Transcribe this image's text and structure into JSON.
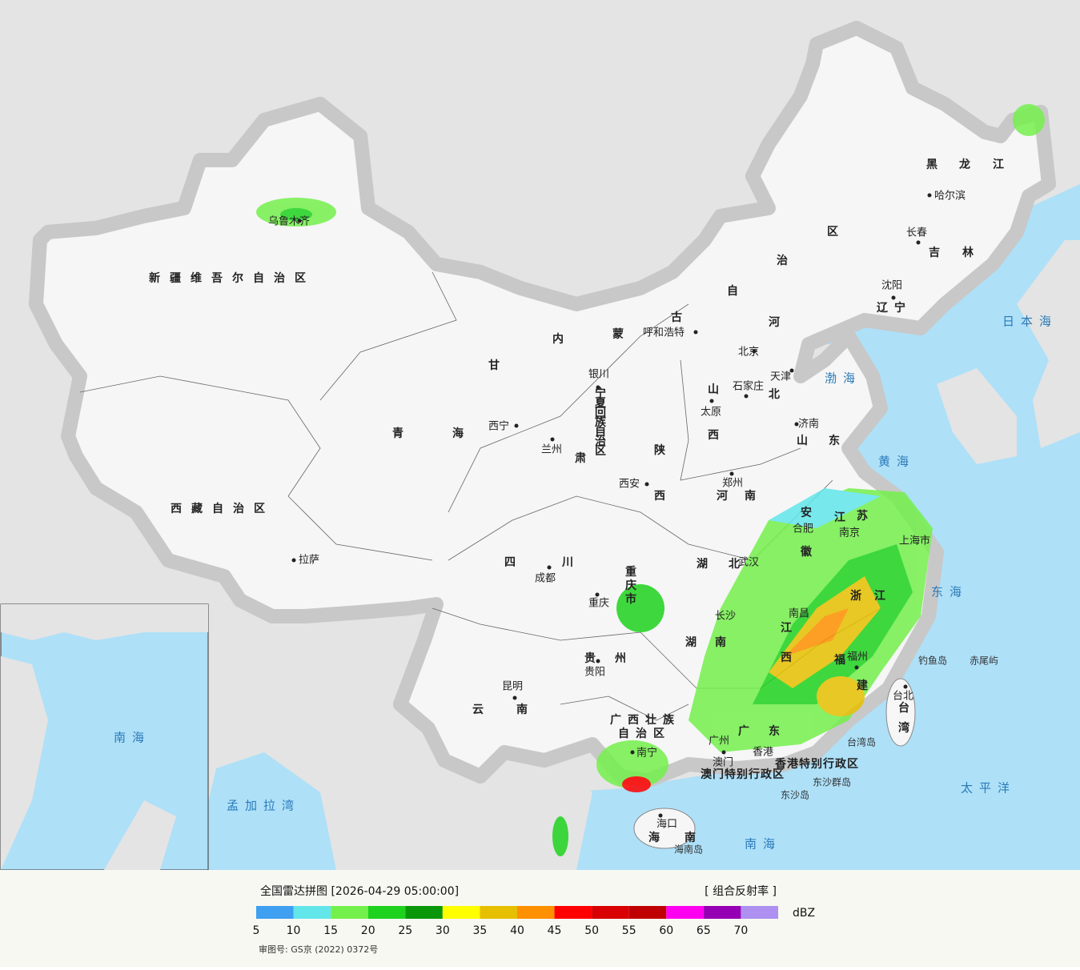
{
  "legend": {
    "title": "全国雷达拼图 [2026-04-29 05:00:00]",
    "product": "[ 组合反射率 ]",
    "unit": "dBZ",
    "bins": [
      {
        "value": 5,
        "color": "#3f9ff0"
      },
      {
        "value": 10,
        "color": "#62e6ea"
      },
      {
        "value": 15,
        "color": "#74f04c"
      },
      {
        "value": 20,
        "color": "#1ed21e"
      },
      {
        "value": 25,
        "color": "#0a980a"
      },
      {
        "value": 30,
        "color": "#ffff00"
      },
      {
        "value": 35,
        "color": "#e6c000"
      },
      {
        "value": 40,
        "color": "#ff9000"
      },
      {
        "value": 45,
        "color": "#ff0000"
      },
      {
        "value": 50,
        "color": "#d80000"
      },
      {
        "value": 55,
        "color": "#c00000"
      },
      {
        "value": 60,
        "color": "#ff00f0"
      },
      {
        "value": 65,
        "color": "#9600b4"
      },
      {
        "value": 70,
        "color": "#ad90f0"
      }
    ]
  },
  "approval": "审图号: GS京 (2022) 0372号",
  "provinces": [
    "新疆维吾尔自治区",
    "西藏自治区",
    "青海",
    "甘肃",
    "内蒙古自治区",
    "宁夏回族自治区",
    "四川",
    "云南",
    "贵州",
    "重庆市",
    "陕西",
    "山西",
    "河北",
    "河南",
    "山东",
    "湖北",
    "湖南",
    "江西",
    "安徽",
    "江苏",
    "浙江",
    "福建",
    "广东",
    "广西壮族自治区",
    "海南",
    "台湾",
    "黑龙江",
    "吉林",
    "辽宁",
    "香港特别行政区",
    "澳门特别行政区"
  ],
  "cities": [
    "乌鲁木齐",
    "拉萨",
    "西宁",
    "兰州",
    "银川",
    "呼和浩特",
    "北京",
    "天津",
    "石家庄",
    "太原",
    "济南",
    "郑州",
    "西安",
    "成都",
    "重庆",
    "贵阳",
    "昆明",
    "南宁",
    "广州",
    "香港",
    "澳门",
    "海口",
    "福州",
    "南昌",
    "长沙",
    "武汉",
    "合肥",
    "南京",
    "上海市",
    "台北",
    "沈阳",
    "长春",
    "哈尔滨"
  ],
  "seas": [
    "日本海",
    "渤海",
    "黄海",
    "东海",
    "太平洋",
    "南海",
    "孟加拉湾"
  ],
  "islands": [
    "钓鱼岛",
    "赤尾屿",
    "台湾岛",
    "海南岛",
    "东沙群岛",
    "东沙岛"
  ],
  "inset": {
    "sea": "南海"
  }
}
